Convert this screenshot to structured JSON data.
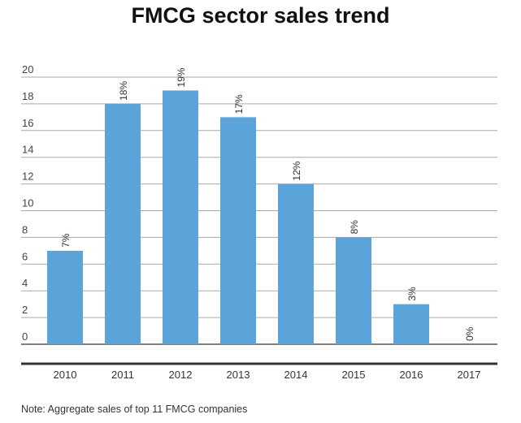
{
  "chart_data": {
    "type": "bar",
    "title": "FMCG sector sales trend",
    "categories": [
      "2010",
      "2011",
      "2012",
      "2013",
      "2014",
      "2015",
      "2016",
      "2017"
    ],
    "values": [
      7,
      18,
      19,
      17,
      12,
      8,
      3,
      0
    ],
    "data_labels": [
      "7%",
      "18%",
      "19%",
      "17%",
      "12%",
      "8%",
      "3%",
      "0%"
    ],
    "ylim": [
      0,
      20
    ],
    "yticks": [
      0,
      2,
      4,
      6,
      8,
      10,
      12,
      14,
      16,
      18,
      20
    ],
    "grid": true,
    "bar_color": "#5ba4da",
    "xlabel": "",
    "ylabel": ""
  },
  "note": "Note: Aggregate sales of top 11 FMCG companies"
}
